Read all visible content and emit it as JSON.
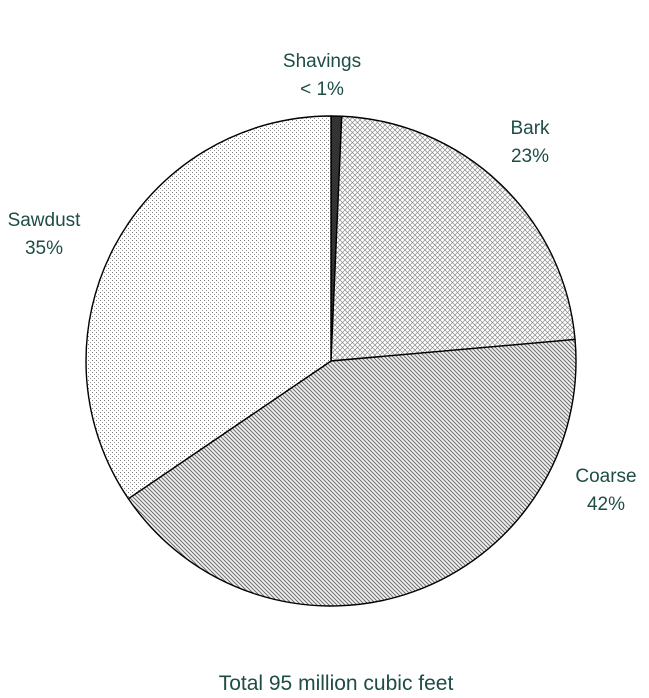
{
  "chart_data": {
    "type": "pie",
    "title": "",
    "caption": "Total 95 million cubic feet",
    "slices": [
      {
        "name": "Shavings",
        "label": "< 1%",
        "value": 0.7,
        "pattern": "solid-dark"
      },
      {
        "name": "Bark",
        "label": "23%",
        "value": 22.9,
        "pattern": "crosshatch"
      },
      {
        "name": "Coarse",
        "label": "42%",
        "value": 41.9,
        "pattern": "diagonal"
      },
      {
        "name": "Sawdust",
        "label": "35%",
        "value": 34.5,
        "pattern": "dots"
      }
    ],
    "start_angle": "12 o'clock",
    "direction": "clockwise",
    "text_color": "#1d4d46",
    "edge_color": "#000000",
    "shavings_color": "#333333"
  }
}
